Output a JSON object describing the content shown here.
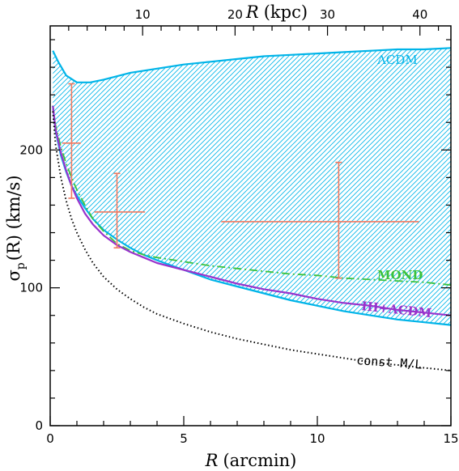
{
  "chart_data": {
    "type": "line",
    "xlabel_italic": "R",
    "xlabel_rest": "(arcmin)",
    "ylabel_sym": "σ",
    "ylabel_sub": "p",
    "ylabel_rest": "(R)  (km/s)",
    "top_label_italic": "R",
    "top_label_rest": "(kpc)",
    "xlim": [
      0,
      15
    ],
    "ylim": [
      0,
      290
    ],
    "x_ticks": [
      0,
      5,
      10,
      15
    ],
    "y_ticks": [
      0,
      100,
      200
    ],
    "top_ticks_kpc": [
      10,
      20,
      30,
      40
    ],
    "kpc_per_arcmin": 2.89,
    "colors": {
      "lcdm": "#00b4e8",
      "mond": "#3cc23c",
      "hi_lcdm": "#9933cc",
      "const_ml": "#000000",
      "data": "#f07860"
    },
    "annotations": {
      "lcdm": "ΛCDM",
      "mond": "MOND",
      "hi_lcdm": "HI+ΛCDM",
      "const_ml": "const M/L"
    },
    "series": [
      {
        "name": "ΛCDM upper",
        "x": [
          0.1,
          0.3,
          0.6,
          1.0,
          1.5,
          2.0,
          3.0,
          4.0,
          5.0,
          6.0,
          7.0,
          8.0,
          9.0,
          10.0,
          11.0,
          12.0,
          13.0,
          14.0,
          15.0
        ],
        "y": [
          272,
          264,
          254,
          249,
          249,
          251,
          256,
          259,
          262,
          264,
          266,
          268,
          269,
          270,
          271,
          272,
          273,
          273,
          274
        ]
      },
      {
        "name": "ΛCDM lower",
        "x": [
          0.1,
          0.2,
          0.4,
          0.6,
          0.8,
          1.0,
          1.3,
          1.6,
          2.0,
          2.5,
          3.0,
          3.5,
          4.0,
          5.0,
          6.0,
          7.0,
          8.0,
          9.0,
          10.0,
          11.0,
          12.0,
          13.0,
          14.0,
          15.0
        ],
        "y": [
          232,
          214,
          196,
          184,
          174,
          167,
          158,
          150,
          142,
          135,
          129,
          124,
          120,
          113,
          106,
          101,
          96,
          91,
          87,
          83,
          80,
          77,
          75,
          73
        ]
      },
      {
        "name": "MOND",
        "x": [
          0.1,
          0.2,
          0.4,
          0.6,
          0.8,
          1.0,
          1.3,
          1.6,
          2.0,
          2.5,
          3.0,
          3.5,
          4.0,
          5.0,
          6.0,
          7.0,
          8.0,
          9.0,
          10.0,
          11.0,
          12.0,
          13.0,
          14.0,
          15.0
        ],
        "y": [
          232,
          218,
          202,
          190,
          180,
          171,
          160,
          150,
          141,
          132,
          127,
          124,
          122,
          119,
          116,
          114,
          112,
          110,
          109,
          107,
          106,
          105,
          104,
          102
        ]
      },
      {
        "name": "HI+ΛCDM",
        "x": [
          0.1,
          0.2,
          0.4,
          0.6,
          0.8,
          1.0,
          1.3,
          1.6,
          2.0,
          2.5,
          3.0,
          3.5,
          4.0,
          5.0,
          6.0,
          7.0,
          8.0,
          9.0,
          10.0,
          11.0,
          12.0,
          13.0,
          14.0,
          15.0
        ],
        "y": [
          232,
          215,
          198,
          185,
          174,
          165,
          154,
          146,
          138,
          131,
          126,
          122,
          118,
          113,
          108,
          103,
          99,
          96,
          92,
          89,
          87,
          84,
          82,
          80
        ]
      },
      {
        "name": "const M/L",
        "x": [
          0.1,
          0.2,
          0.4,
          0.6,
          0.8,
          1.0,
          1.3,
          1.6,
          2.0,
          2.5,
          3.0,
          3.5,
          4.0,
          5.0,
          6.0,
          7.0,
          8.0,
          9.0,
          10.0,
          11.0,
          12.0,
          13.0,
          14.0,
          15.0
        ],
        "y": [
          228,
          204,
          180,
          163,
          150,
          140,
          128,
          118,
          108,
          99,
          92,
          86,
          81,
          74,
          68,
          63,
          59,
          55,
          52,
          49,
          46,
          44,
          42,
          40
        ]
      }
    ],
    "points": [
      {
        "x": 0.8,
        "y": 205,
        "xerr": [
          0.45,
          1.15
        ],
        "yerr": [
          165,
          248
        ]
      },
      {
        "x": 2.5,
        "y": 155,
        "xerr": [
          1.65,
          3.55
        ],
        "yerr": [
          129,
          183
        ]
      },
      {
        "x": 10.8,
        "y": 148,
        "xerr": [
          6.4,
          13.8
        ],
        "yerr": [
          107,
          191
        ]
      }
    ]
  }
}
